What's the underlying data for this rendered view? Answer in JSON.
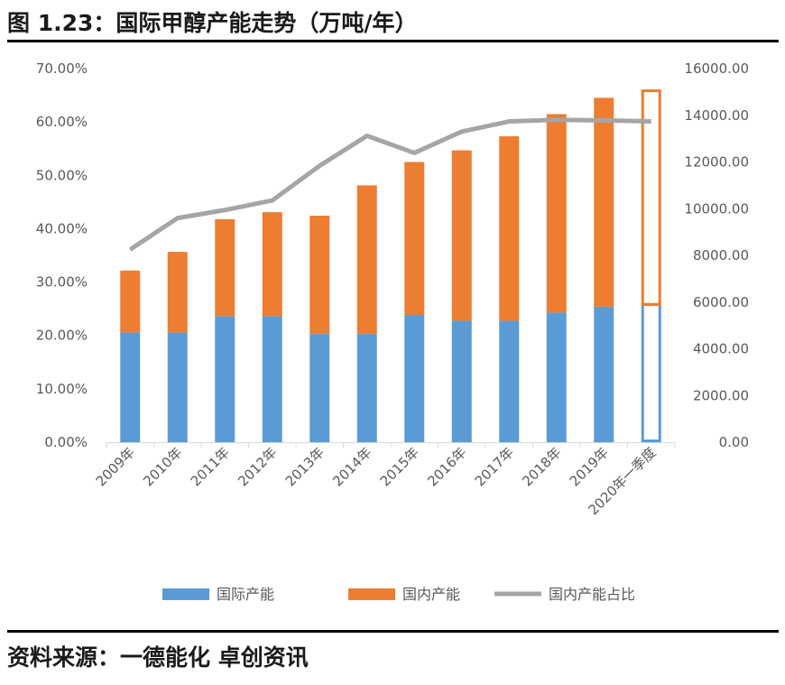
{
  "figure_title": "图 1.23：国际甲醇产能走势（万吨/年）",
  "source_text": "资料来源：一德能化  卓创资讯",
  "colors": {
    "intl": "#5b9bd5",
    "domestic": "#ed7d31",
    "share": "#a5a5a5",
    "axis": "#d9d9d9",
    "tick_text": "#595959"
  },
  "chart_data": {
    "type": "bar",
    "stacked": true,
    "categories": [
      "2009年",
      "2010年",
      "2011年",
      "2012年",
      "2013年",
      "2014年",
      "2015年",
      "2016年",
      "2017年",
      "2018年",
      "2019年",
      "2020年一季度"
    ],
    "series": [
      {
        "name": "国际产能",
        "axis": "right",
        "values": [
          4700,
          4700,
          5400,
          5400,
          4650,
          4650,
          5450,
          5200,
          5200,
          5550,
          5800,
          5900
        ]
      },
      {
        "name": "国内产能",
        "axis": "right",
        "values": [
          2650,
          3450,
          4150,
          4450,
          5050,
          6350,
          6550,
          7300,
          7900,
          8500,
          8950,
          9150
        ],
        "last_category_style": "outline"
      },
      {
        "name": "国内产能占比",
        "type": "line",
        "axis": "left",
        "values": [
          36.1,
          42.0,
          43.5,
          45.3,
          51.8,
          57.4,
          54.2,
          58.2,
          60.1,
          60.4,
          60.3,
          60.1
        ]
      }
    ],
    "y_left": {
      "range": [
        0,
        70
      ],
      "ticks": [
        "0.00%",
        "10.00%",
        "20.00%",
        "30.00%",
        "40.00%",
        "50.00%",
        "60.00%",
        "70.00%"
      ]
    },
    "y_right": {
      "range": [
        0,
        16000
      ],
      "ticks": [
        "0.00",
        "2000.00",
        "4000.00",
        "6000.00",
        "8000.00",
        "10000.00",
        "12000.00",
        "14000.00",
        "16000.00"
      ]
    },
    "grid": false,
    "legend_position": "bottom"
  }
}
